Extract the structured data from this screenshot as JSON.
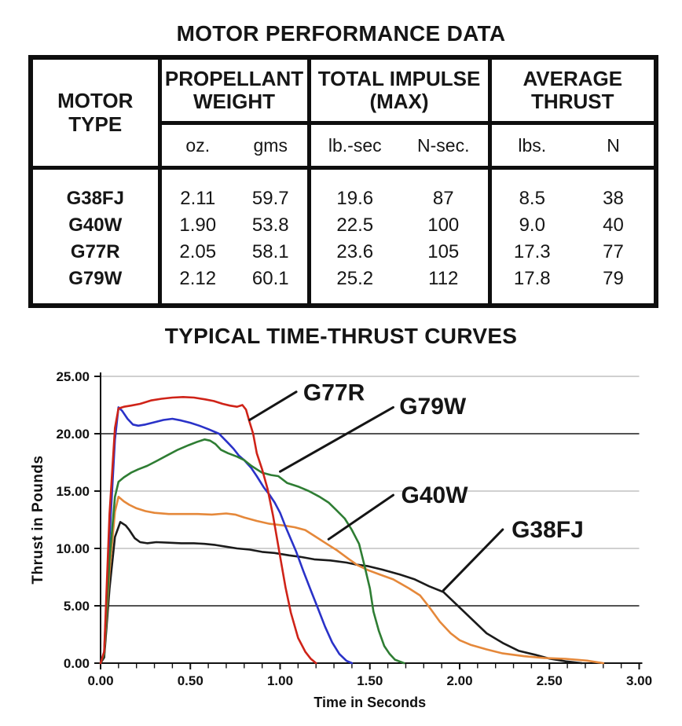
{
  "table": {
    "title": "MOTOR PERFORMANCE DATA",
    "group_headers": [
      "MOTOR TYPE",
      "PROPELLANT WEIGHT",
      "TOTAL IMPULSE (MAX)",
      "AVERAGE THRUST"
    ],
    "units": [
      "oz.",
      "gms",
      "lb.-sec",
      "N-sec.",
      "lbs.",
      "N"
    ],
    "rows": [
      [
        "G38FJ",
        "2.11",
        "59.7",
        "19.6",
        "87",
        "8.5",
        "38"
      ],
      [
        "G40W",
        "1.90",
        "53.8",
        "22.5",
        "100",
        "9.0",
        "40"
      ],
      [
        "G77R",
        "2.05",
        "58.1",
        "23.6",
        "105",
        "17.3",
        "77"
      ],
      [
        "G79W",
        "2.12",
        "60.1",
        "25.2",
        "112",
        "17.8",
        "79"
      ]
    ]
  },
  "chart_data": {
    "type": "line",
    "title": "TYPICAL TIME-THRUST CURVES",
    "xlabel": "Time in Seconds",
    "ylabel": "Thrust in Pounds",
    "xlim": [
      0,
      3
    ],
    "ylim": [
      0,
      25
    ],
    "x_major_tick": 0.5,
    "x_minor_tick": 0.1,
    "y_major_tick": 5,
    "x_tick_labels": [
      "0.00",
      "0.50",
      "1.00",
      "1.50",
      "2.00",
      "2.50",
      "3.00"
    ],
    "y_tick_labels": [
      "25.00",
      "20.00",
      "15.00",
      "10.00",
      "5.00",
      "0.00"
    ],
    "grid": "horizontal",
    "colors": {
      "light_grid": "#b5b5b5",
      "dark_grid": "#1a1a1a",
      "axis": "#111111",
      "annotation": "#151515"
    },
    "y_gridlines": [
      {
        "value": 25,
        "dark": false
      },
      {
        "value": 20,
        "dark": true
      },
      {
        "value": 15,
        "dark": false
      },
      {
        "value": 10,
        "dark": false
      },
      {
        "value": 5,
        "dark": true
      }
    ],
    "series": [
      {
        "name": "G38FJ",
        "color": "#1b1b1b",
        "points": [
          [
            0,
            0
          ],
          [
            0.02,
            0.5
          ],
          [
            0.05,
            6.5
          ],
          [
            0.08,
            11
          ],
          [
            0.11,
            12.3
          ],
          [
            0.14,
            12.0
          ],
          [
            0.16,
            11.6
          ],
          [
            0.19,
            10.9
          ],
          [
            0.22,
            10.55
          ],
          [
            0.26,
            10.45
          ],
          [
            0.31,
            10.55
          ],
          [
            0.38,
            10.5
          ],
          [
            0.45,
            10.45
          ],
          [
            0.52,
            10.45
          ],
          [
            0.58,
            10.4
          ],
          [
            0.64,
            10.3
          ],
          [
            0.7,
            10.15
          ],
          [
            0.76,
            10.0
          ],
          [
            0.83,
            9.9
          ],
          [
            0.9,
            9.7
          ],
          [
            0.97,
            9.6
          ],
          [
            1.05,
            9.4
          ],
          [
            1.12,
            9.25
          ],
          [
            1.19,
            9.05
          ],
          [
            1.28,
            8.95
          ],
          [
            1.37,
            8.77
          ],
          [
            1.42,
            8.6
          ],
          [
            1.49,
            8.45
          ],
          [
            1.57,
            8.15
          ],
          [
            1.66,
            7.76
          ],
          [
            1.75,
            7.3
          ],
          [
            1.83,
            6.7
          ],
          [
            1.91,
            6.2
          ],
          [
            1.99,
            5.0
          ],
          [
            2.07,
            3.8
          ],
          [
            2.15,
            2.6
          ],
          [
            2.24,
            1.76
          ],
          [
            2.33,
            1.07
          ],
          [
            2.42,
            0.73
          ],
          [
            2.5,
            0.4
          ],
          [
            2.59,
            0.16
          ],
          [
            2.68,
            0
          ]
        ]
      },
      {
        "name": "G40W",
        "color": "#e5883a",
        "points": [
          [
            0,
            0
          ],
          [
            0.02,
            0.8
          ],
          [
            0.05,
            8
          ],
          [
            0.08,
            13.2
          ],
          [
            0.1,
            14.5
          ],
          [
            0.13,
            14.1
          ],
          [
            0.16,
            13.8
          ],
          [
            0.2,
            13.5
          ],
          [
            0.25,
            13.25
          ],
          [
            0.3,
            13.1
          ],
          [
            0.38,
            13.0
          ],
          [
            0.46,
            13.0
          ],
          [
            0.54,
            13.0
          ],
          [
            0.62,
            12.95
          ],
          [
            0.7,
            13.05
          ],
          [
            0.75,
            12.95
          ],
          [
            0.8,
            12.7
          ],
          [
            0.87,
            12.4
          ],
          [
            0.94,
            12.15
          ],
          [
            1.02,
            12.0
          ],
          [
            1.08,
            11.85
          ],
          [
            1.14,
            11.6
          ],
          [
            1.2,
            11.0
          ],
          [
            1.26,
            10.4
          ],
          [
            1.32,
            9.8
          ],
          [
            1.38,
            9.1
          ],
          [
            1.43,
            8.55
          ],
          [
            1.49,
            8.1
          ],
          [
            1.56,
            7.7
          ],
          [
            1.63,
            7.3
          ],
          [
            1.72,
            6.5
          ],
          [
            1.78,
            5.9
          ],
          [
            1.83,
            4.9
          ],
          [
            1.89,
            3.6
          ],
          [
            1.95,
            2.6
          ],
          [
            2.0,
            2.0
          ],
          [
            2.06,
            1.6
          ],
          [
            2.15,
            1.2
          ],
          [
            2.24,
            0.85
          ],
          [
            2.36,
            0.6
          ],
          [
            2.47,
            0.45
          ],
          [
            2.59,
            0.38
          ],
          [
            2.71,
            0.22
          ],
          [
            2.8,
            0
          ]
        ]
      },
      {
        "name": "G79W",
        "color": "#2a32c8",
        "points": [
          [
            0,
            0
          ],
          [
            0.02,
            1
          ],
          [
            0.05,
            11
          ],
          [
            0.08,
            19.5
          ],
          [
            0.1,
            22.3
          ],
          [
            0.12,
            22.0
          ],
          [
            0.15,
            21.3
          ],
          [
            0.18,
            20.8
          ],
          [
            0.21,
            20.7
          ],
          [
            0.25,
            20.8
          ],
          [
            0.3,
            21.0
          ],
          [
            0.35,
            21.2
          ],
          [
            0.4,
            21.3
          ],
          [
            0.45,
            21.15
          ],
          [
            0.5,
            20.95
          ],
          [
            0.55,
            20.7
          ],
          [
            0.6,
            20.4
          ],
          [
            0.66,
            20.0
          ],
          [
            0.71,
            19.2
          ],
          [
            0.74,
            18.7
          ],
          [
            0.77,
            18.1
          ],
          [
            0.8,
            17.7
          ],
          [
            0.84,
            17.0
          ],
          [
            0.87,
            16.3
          ],
          [
            0.91,
            15.3
          ],
          [
            0.94,
            14.7
          ],
          [
            0.97,
            14.0
          ],
          [
            1.0,
            13.1
          ],
          [
            1.03,
            11.9
          ],
          [
            1.06,
            10.8
          ],
          [
            1.09,
            9.7
          ],
          [
            1.13,
            8.0
          ],
          [
            1.17,
            6.4
          ],
          [
            1.21,
            4.8
          ],
          [
            1.25,
            3.2
          ],
          [
            1.29,
            1.8
          ],
          [
            1.33,
            0.8
          ],
          [
            1.37,
            0.2
          ],
          [
            1.4,
            0
          ]
        ]
      },
      {
        "name": "(unlabeled green)",
        "color": "#2e7d33",
        "points": [
          [
            0,
            0
          ],
          [
            0.02,
            0.8
          ],
          [
            0.05,
            9
          ],
          [
            0.08,
            14.5
          ],
          [
            0.1,
            15.8
          ],
          [
            0.13,
            16.2
          ],
          [
            0.17,
            16.6
          ],
          [
            0.21,
            16.9
          ],
          [
            0.26,
            17.2
          ],
          [
            0.31,
            17.6
          ],
          [
            0.37,
            18.1
          ],
          [
            0.43,
            18.6
          ],
          [
            0.49,
            19.0
          ],
          [
            0.54,
            19.3
          ],
          [
            0.58,
            19.5
          ],
          [
            0.61,
            19.4
          ],
          [
            0.64,
            19.1
          ],
          [
            0.67,
            18.6
          ],
          [
            0.71,
            18.3
          ],
          [
            0.76,
            18.0
          ],
          [
            0.8,
            17.7
          ],
          [
            0.84,
            17.2
          ],
          [
            0.87,
            16.9
          ],
          [
            0.9,
            16.6
          ],
          [
            0.95,
            16.4
          ],
          [
            0.99,
            16.3
          ],
          [
            1.04,
            15.7
          ],
          [
            1.1,
            15.4
          ],
          [
            1.16,
            15.0
          ],
          [
            1.22,
            14.5
          ],
          [
            1.27,
            14.0
          ],
          [
            1.31,
            13.4
          ],
          [
            1.36,
            12.6
          ],
          [
            1.4,
            11.6
          ],
          [
            1.44,
            10.4
          ],
          [
            1.47,
            8.5
          ],
          [
            1.5,
            6.5
          ],
          [
            1.52,
            4.5
          ],
          [
            1.55,
            2.8
          ],
          [
            1.58,
            1.5
          ],
          [
            1.61,
            0.8
          ],
          [
            1.64,
            0.3
          ],
          [
            1.69,
            0
          ]
        ]
      },
      {
        "name": "G77R",
        "color": "#cf2318",
        "points": [
          [
            0,
            0
          ],
          [
            0.02,
            1
          ],
          [
            0.05,
            13
          ],
          [
            0.08,
            20.5
          ],
          [
            0.1,
            22.2
          ],
          [
            0.13,
            22.35
          ],
          [
            0.17,
            22.45
          ],
          [
            0.22,
            22.6
          ],
          [
            0.28,
            22.9
          ],
          [
            0.34,
            23.05
          ],
          [
            0.4,
            23.15
          ],
          [
            0.46,
            23.2
          ],
          [
            0.52,
            23.15
          ],
          [
            0.58,
            23.0
          ],
          [
            0.63,
            22.85
          ],
          [
            0.68,
            22.6
          ],
          [
            0.72,
            22.45
          ],
          [
            0.76,
            22.35
          ],
          [
            0.79,
            22.5
          ],
          [
            0.81,
            22.1
          ],
          [
            0.83,
            21.0
          ],
          [
            0.85,
            20.0
          ],
          [
            0.87,
            18.3
          ],
          [
            0.9,
            16.9
          ],
          [
            0.93,
            15.2
          ],
          [
            0.96,
            12.9
          ],
          [
            1.0,
            9.3
          ],
          [
            1.03,
            6.6
          ],
          [
            1.06,
            4.4
          ],
          [
            1.1,
            2.2
          ],
          [
            1.14,
            1.0
          ],
          [
            1.17,
            0.4
          ],
          [
            1.2,
            0
          ]
        ]
      }
    ],
    "labels": [
      {
        "text": "G77R",
        "x": 1.3,
        "y": 23.6,
        "leader": [
          [
            1.09,
            23.65
          ],
          [
            0.83,
            21.2
          ]
        ]
      },
      {
        "text": "G79W",
        "x": 1.85,
        "y": 22.4,
        "leader": [
          [
            1.63,
            22.3
          ],
          [
            1.0,
            16.7
          ]
        ]
      },
      {
        "text": "G40W",
        "x": 1.86,
        "y": 14.65,
        "leader": [
          [
            1.63,
            14.65
          ],
          [
            1.27,
            10.8
          ]
        ]
      },
      {
        "text": "G38FJ",
        "x": 2.49,
        "y": 11.65,
        "leader": [
          [
            2.24,
            11.65
          ],
          [
            1.91,
            6.35
          ]
        ]
      }
    ]
  }
}
